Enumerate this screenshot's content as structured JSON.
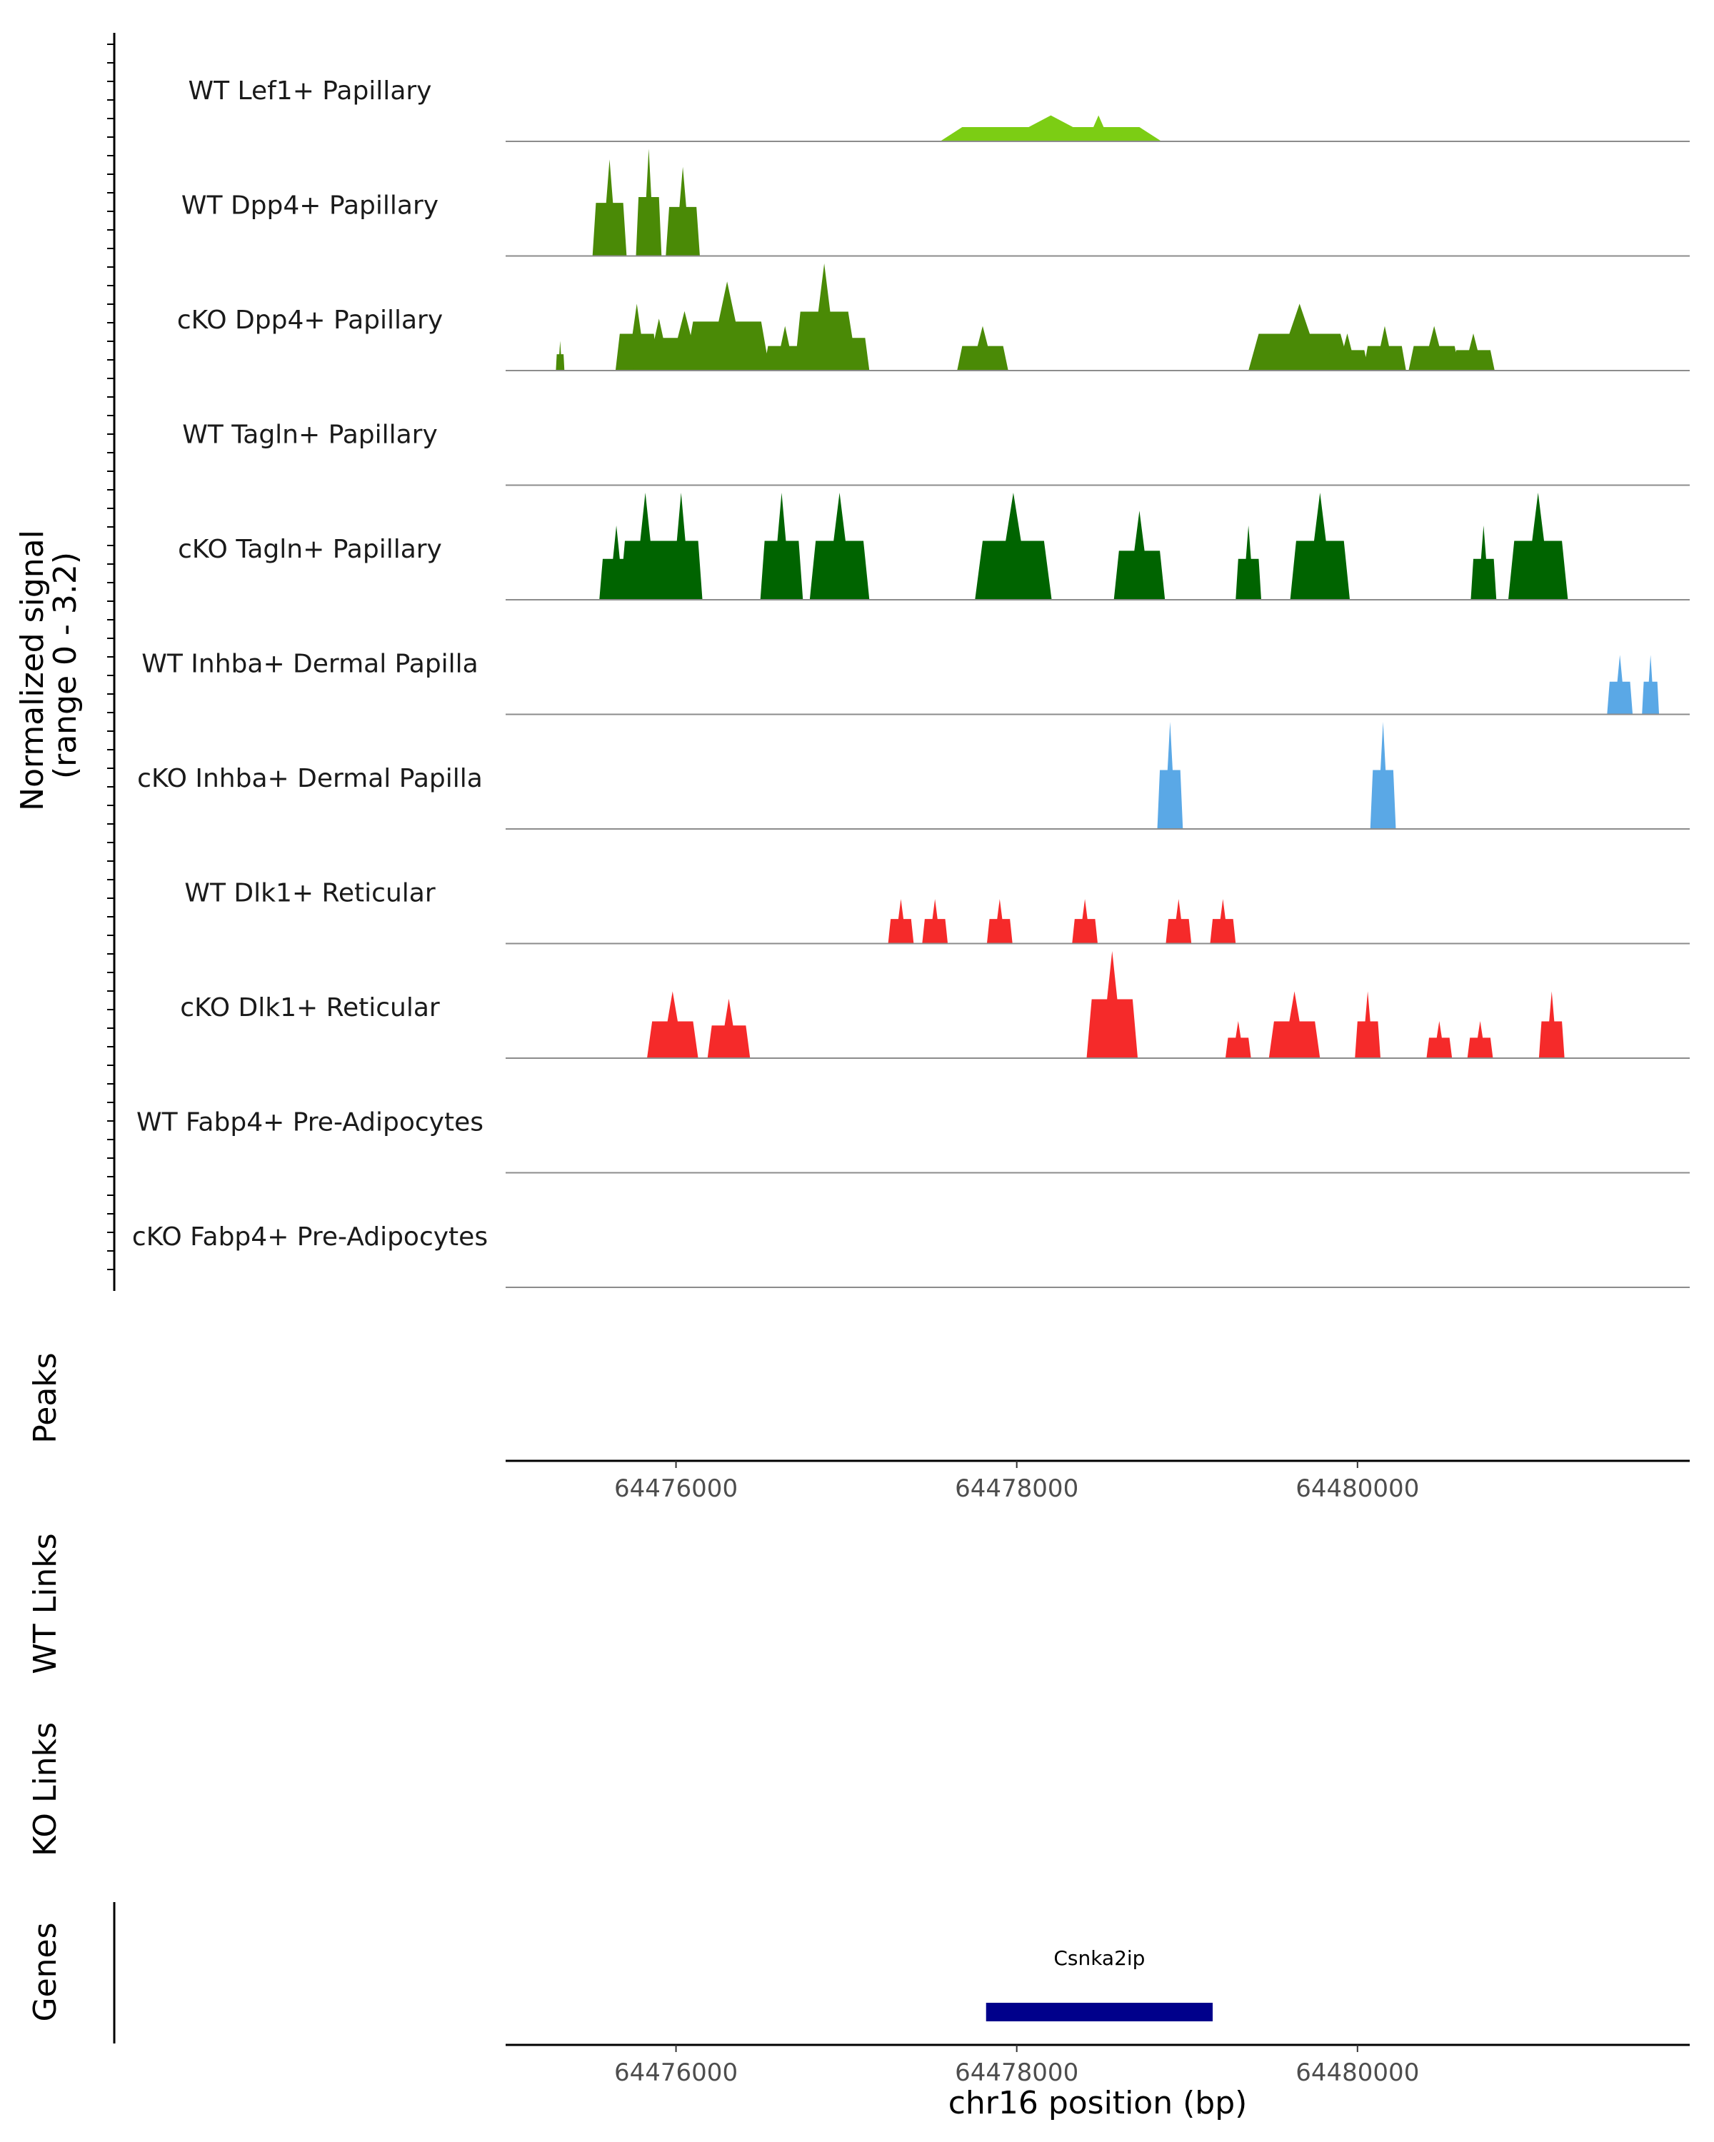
{
  "chart_data": {
    "type": "area",
    "title": "",
    "y_axis_label_line1": "Normalized signal",
    "y_axis_label_line2": "(range 0 - 3.2)",
    "ylim": [
      0,
      3.2
    ],
    "xlim": [
      64475000,
      64481950
    ],
    "xlabel": "chr16 position (bp)",
    "x_ticks": [
      64476000,
      64478000,
      64480000
    ],
    "x_tick_labels": [
      "64476000",
      "64478000",
      "64480000"
    ],
    "colors": {
      "lef1": "#7CCD14",
      "dpp4": "#4A8A06",
      "tagln": "#006400",
      "inhba": "#5AA8E6",
      "dlk1": "#F52A2A",
      "gene": "#00008B",
      "baseline": "#8C8C8C",
      "axis": "#000000"
    },
    "tracks": [
      {
        "name": "WT Lef1+ Papillary",
        "color_key": "lef1",
        "peaks": [
          [
            64478200,
            1.3,
            0.35
          ],
          [
            64478480,
            0.3,
            0.35
          ]
        ]
      },
      {
        "name": "WT Dpp4+ Papillary",
        "color_key": "dpp4",
        "peaks": [
          [
            64475610,
            0.2,
            1.3
          ],
          [
            64475840,
            0.15,
            2.7
          ],
          [
            64476040,
            0.2,
            1.2
          ]
        ]
      },
      {
        "name": "cKO Dpp4+ Papillary",
        "color_key": "dpp4",
        "peaks": [
          [
            64475320,
            0.05,
            0.4
          ],
          [
            64475770,
            0.25,
            0.9
          ],
          [
            64475900,
            0.3,
            0.7
          ],
          [
            64476050,
            0.4,
            0.8
          ],
          [
            64476300,
            0.5,
            1.2
          ],
          [
            64476640,
            0.25,
            0.6
          ],
          [
            64476870,
            0.35,
            1.5
          ],
          [
            64477010,
            0.25,
            0.8
          ],
          [
            64477800,
            0.3,
            0.6
          ],
          [
            64479660,
            0.6,
            0.9
          ],
          [
            64479940,
            0.25,
            0.5
          ],
          [
            64480160,
            0.25,
            0.6
          ],
          [
            64480450,
            0.3,
            0.6
          ],
          [
            64480680,
            0.25,
            0.5
          ]
        ]
      },
      {
        "name": "WT Tagln+ Papillary",
        "color_key": "tagln",
        "peaks": []
      },
      {
        "name": "cKO Tagln+ Papillary",
        "color_key": "tagln",
        "peaks": [
          [
            64475650,
            0.2,
            1.0
          ],
          [
            64475820,
            0.3,
            3.2
          ],
          [
            64476030,
            0.25,
            2.0
          ],
          [
            64476620,
            0.25,
            2.0
          ],
          [
            64476960,
            0.35,
            2.4
          ],
          [
            64477980,
            0.45,
            3.2
          ],
          [
            64478720,
            0.3,
            1.2
          ],
          [
            64479360,
            0.15,
            1.0
          ],
          [
            64479780,
            0.35,
            2.9
          ],
          [
            64480740,
            0.15,
            1.0
          ],
          [
            64481060,
            0.35,
            2.1
          ]
        ]
      },
      {
        "name": "WT Inhba+ Dermal Papilla",
        "color_key": "inhba",
        "peaks": [
          [
            64481540,
            0.15,
            0.8
          ],
          [
            64481720,
            0.1,
            0.8
          ]
        ]
      },
      {
        "name": "cKO Inhba+ Dermal Papilla",
        "color_key": "inhba",
        "peaks": [
          [
            64478900,
            0.15,
            5.0
          ],
          [
            64480150,
            0.15,
            5.0
          ]
        ]
      },
      {
        "name": "WT Dlk1+ Reticular",
        "color_key": "dlk1",
        "peaks": [
          [
            64477320,
            0.15,
            0.6
          ],
          [
            64477520,
            0.15,
            0.6
          ],
          [
            64477900,
            0.15,
            0.6
          ],
          [
            64478400,
            0.15,
            0.6
          ],
          [
            64478950,
            0.15,
            0.6
          ],
          [
            64479210,
            0.15,
            0.6
          ]
        ]
      },
      {
        "name": "cKO Dlk1+ Reticular",
        "color_key": "dlk1",
        "peaks": [
          [
            64475980,
            0.3,
            0.9
          ],
          [
            64476310,
            0.25,
            0.8
          ],
          [
            64478560,
            0.3,
            1.5
          ],
          [
            64479300,
            0.15,
            0.5
          ],
          [
            64479630,
            0.3,
            0.9
          ],
          [
            64480060,
            0.15,
            0.9
          ],
          [
            64480480,
            0.15,
            0.5
          ],
          [
            64480720,
            0.15,
            0.5
          ],
          [
            64481140,
            0.15,
            0.9
          ]
        ]
      },
      {
        "name": "WT Fabp4+ Pre-Adipocytes",
        "color_key": "lef1",
        "peaks": []
      },
      {
        "name": "cKO Fabp4+ Pre-Adipocytes",
        "color_key": "lef1",
        "peaks": []
      }
    ],
    "panels": {
      "peaks_label": "Peaks",
      "wt_links_label": "WT Links",
      "ko_links_label": "KO Links",
      "genes_label": "Genes"
    },
    "genes": [
      {
        "name": "Csnka2ip",
        "start": 64477820,
        "end": 64479150
      }
    ]
  }
}
